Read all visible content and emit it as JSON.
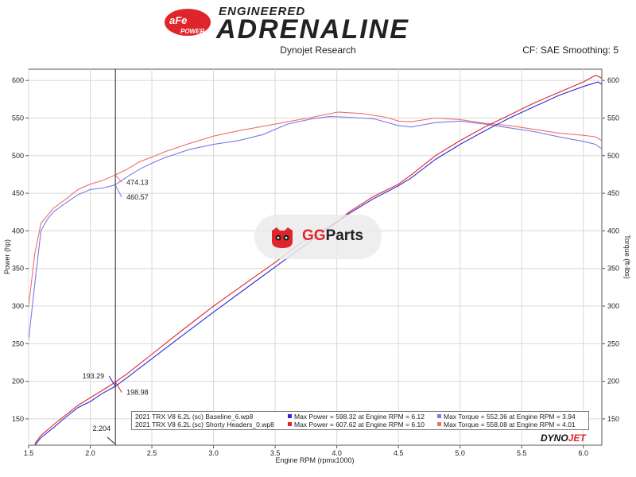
{
  "header": {
    "brand_badge": "aFe POWER",
    "brand_sub": "ENGINEERED",
    "brand_main": "ADRENALINE",
    "source": "Dynojet Research",
    "cf_label": "CF: SAE Smoothing: 5"
  },
  "watermark": {
    "text_g": "GG",
    "text_rest": "Parts"
  },
  "dynojet_mark": {
    "a": "DYNO",
    "b": "JET"
  },
  "legend": {
    "rows": [
      {
        "run": "2021 TRX V8 6.2L (sc) Baseline_6.wp8",
        "power": "Max Power = 598.32 at Engine RPM = 6.12",
        "torque": "Max Torque = 552.36 at Engine RPM = 3.94"
      },
      {
        "run": "2021 TRX V8 6.2L (sc) Shorty Headers_0.wp8",
        "power": "Max Power = 607.62 at Engine RPM = 6.10",
        "torque": "Max Torque = 558.08 at Engine RPM = 4.01"
      }
    ]
  },
  "colors": {
    "baseline_power": "#2a2ad8",
    "headers_power": "#e0242b",
    "baseline_torque": "#7a7ae6",
    "headers_torque": "#ee7070"
  },
  "chart_data": {
    "type": "line",
    "xlabel": "Engine RPM (rpmx1000)",
    "ylabel_left": "Power (hp)",
    "ylabel_right": "Torque (ft-lbs)",
    "xlim": [
      1.5,
      6.15
    ],
    "ylim": [
      115,
      615
    ],
    "x_ticks": [
      "1.5",
      "2.0",
      "2.5",
      "3.0",
      "3.5",
      "4.0",
      "4.5",
      "5.0",
      "5.5",
      "6.0"
    ],
    "y_ticks": [
      "150",
      "200",
      "250",
      "300",
      "350",
      "400",
      "450",
      "500",
      "550",
      "600"
    ],
    "grid": true,
    "cursor": {
      "x": 2.204,
      "label": "2.204"
    },
    "cursor_labels": [
      {
        "text": "474.13",
        "x": 2.204,
        "y": 474.13,
        "series": "headers_torque"
      },
      {
        "text": "460.57",
        "x": 2.204,
        "y": 460.57,
        "series": "baseline_torque"
      },
      {
        "text": "193.29",
        "x": 2.204,
        "y": 193.29,
        "series": "baseline_power"
      },
      {
        "text": "198.98",
        "x": 2.204,
        "y": 198.98,
        "series": "headers_power"
      }
    ],
    "series": [
      {
        "key": "baseline_torque",
        "points": [
          [
            1.5,
            255
          ],
          [
            1.55,
            330
          ],
          [
            1.6,
            400
          ],
          [
            1.65,
            415
          ],
          [
            1.7,
            425
          ],
          [
            1.8,
            437
          ],
          [
            1.9,
            448
          ],
          [
            2.0,
            455
          ],
          [
            2.1,
            457
          ],
          [
            2.2,
            461
          ],
          [
            2.3,
            472
          ],
          [
            2.4,
            482
          ],
          [
            2.5,
            490
          ],
          [
            2.6,
            497
          ],
          [
            2.8,
            508
          ],
          [
            3.0,
            515
          ],
          [
            3.2,
            520
          ],
          [
            3.4,
            528
          ],
          [
            3.6,
            542
          ],
          [
            3.8,
            549
          ],
          [
            3.94,
            552
          ],
          [
            4.1,
            551
          ],
          [
            4.3,
            549
          ],
          [
            4.5,
            540
          ],
          [
            4.6,
            538
          ],
          [
            4.8,
            544
          ],
          [
            5.0,
            546
          ],
          [
            5.2,
            542
          ],
          [
            5.4,
            537
          ],
          [
            5.6,
            532
          ],
          [
            5.8,
            525
          ],
          [
            6.0,
            519
          ],
          [
            6.05,
            517
          ],
          [
            6.1,
            515
          ],
          [
            6.15,
            509
          ]
        ]
      },
      {
        "key": "headers_torque",
        "points": [
          [
            1.5,
            300
          ],
          [
            1.55,
            370
          ],
          [
            1.6,
            410
          ],
          [
            1.7,
            430
          ],
          [
            1.8,
            442
          ],
          [
            1.9,
            455
          ],
          [
            2.0,
            462
          ],
          [
            2.1,
            467
          ],
          [
            2.2,
            474
          ],
          [
            2.3,
            482
          ],
          [
            2.4,
            492
          ],
          [
            2.5,
            498
          ],
          [
            2.6,
            505
          ],
          [
            2.8,
            516
          ],
          [
            3.0,
            526
          ],
          [
            3.2,
            533
          ],
          [
            3.4,
            539
          ],
          [
            3.6,
            545
          ],
          [
            3.8,
            551
          ],
          [
            4.01,
            558
          ],
          [
            4.2,
            556
          ],
          [
            4.4,
            551
          ],
          [
            4.5,
            546
          ],
          [
            4.6,
            545
          ],
          [
            4.8,
            550
          ],
          [
            5.0,
            548
          ],
          [
            5.2,
            543
          ],
          [
            5.4,
            540
          ],
          [
            5.6,
            535
          ],
          [
            5.8,
            530
          ],
          [
            6.0,
            527
          ],
          [
            6.1,
            525
          ],
          [
            6.15,
            520
          ]
        ]
      },
      {
        "key": "baseline_power",
        "points": [
          [
            1.55,
            115
          ],
          [
            1.6,
            125
          ],
          [
            1.7,
            138
          ],
          [
            1.8,
            152
          ],
          [
            1.9,
            165
          ],
          [
            2.0,
            173
          ],
          [
            2.1,
            184
          ],
          [
            2.204,
            193.29
          ],
          [
            2.3,
            205
          ],
          [
            2.5,
            230
          ],
          [
            2.7,
            255
          ],
          [
            3.0,
            292
          ],
          [
            3.3,
            328
          ],
          [
            3.5,
            352
          ],
          [
            3.7,
            376
          ],
          [
            3.94,
            404
          ],
          [
            4.1,
            423
          ],
          [
            4.3,
            443
          ],
          [
            4.5,
            460
          ],
          [
            4.6,
            470
          ],
          [
            4.8,
            495
          ],
          [
            5.0,
            515
          ],
          [
            5.2,
            533
          ],
          [
            5.4,
            550
          ],
          [
            5.6,
            565
          ],
          [
            5.8,
            580
          ],
          [
            6.0,
            592
          ],
          [
            6.12,
            598
          ],
          [
            6.15,
            595
          ]
        ]
      },
      {
        "key": "headers_power",
        "points": [
          [
            1.55,
            117
          ],
          [
            1.6,
            128
          ],
          [
            1.7,
            142
          ],
          [
            1.8,
            155
          ],
          [
            1.9,
            168
          ],
          [
            2.0,
            178
          ],
          [
            2.1,
            188
          ],
          [
            2.204,
            198.98
          ],
          [
            2.3,
            210
          ],
          [
            2.5,
            236
          ],
          [
            2.7,
            262
          ],
          [
            3.0,
            300
          ],
          [
            3.3,
            335
          ],
          [
            3.5,
            358
          ],
          [
            3.7,
            383
          ],
          [
            4.01,
            413
          ],
          [
            4.1,
            425
          ],
          [
            4.3,
            446
          ],
          [
            4.5,
            462
          ],
          [
            4.6,
            474
          ],
          [
            4.8,
            500
          ],
          [
            5.0,
            520
          ],
          [
            5.2,
            538
          ],
          [
            5.4,
            554
          ],
          [
            5.6,
            570
          ],
          [
            5.8,
            584
          ],
          [
            6.0,
            598
          ],
          [
            6.1,
            607
          ],
          [
            6.15,
            603
          ]
        ]
      }
    ]
  }
}
